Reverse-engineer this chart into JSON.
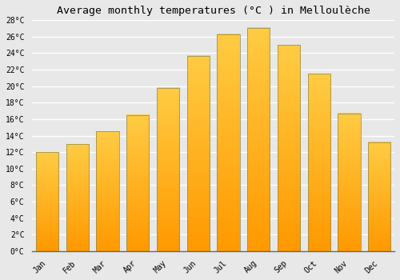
{
  "title": "Average monthly temperatures (°C ) in Melloulèche",
  "months": [
    "Jan",
    "Feb",
    "Mar",
    "Apr",
    "May",
    "Jun",
    "Jul",
    "Aug",
    "Sep",
    "Oct",
    "Nov",
    "Dec"
  ],
  "values": [
    12.0,
    13.0,
    14.5,
    16.5,
    19.8,
    23.7,
    26.3,
    27.1,
    25.0,
    21.5,
    16.7,
    13.2
  ],
  "bar_color_top": "#FFCC44",
  "bar_color_bottom": "#FF9900",
  "ylim": [
    0,
    28
  ],
  "yticks": [
    0,
    2,
    4,
    6,
    8,
    10,
    12,
    14,
    16,
    18,
    20,
    22,
    24,
    26,
    28
  ],
  "background_color": "#e8e8e8",
  "grid_color": "#ffffff",
  "title_fontsize": 9.5,
  "tick_fontsize": 7,
  "bar_width": 0.75
}
